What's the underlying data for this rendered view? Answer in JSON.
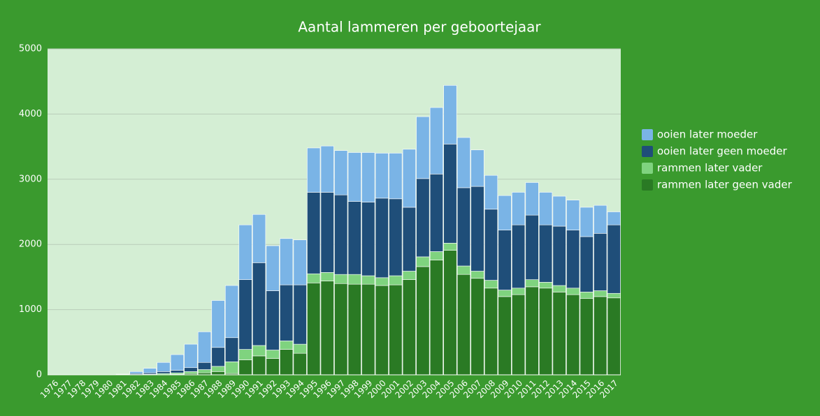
{
  "chart_data": {
    "type": "stacked-bar",
    "title": "Aantal lammeren per geboortejaar",
    "categories": [
      "1976",
      "1977",
      "1978",
      "1979",
      "1980",
      "1981",
      "1982",
      "1983",
      "1984",
      "1985",
      "1986",
      "1987",
      "1988",
      "1989",
      "1990",
      "1991",
      "1992",
      "1993",
      "1994",
      "1995",
      "1996",
      "1997",
      "1998",
      "1999",
      "2000",
      "2001",
      "2002",
      "2003",
      "2004",
      "2005",
      "2006",
      "2007",
      "2008",
      "2009",
      "2010",
      "2011",
      "2012",
      "2013",
      "2014",
      "2015",
      "2016",
      "2017"
    ],
    "series": [
      {
        "name": "ooien later moeder",
        "color": "#7ab4e6",
        "values": [
          0,
          0,
          0,
          0,
          0,
          5,
          30,
          70,
          140,
          240,
          360,
          470,
          720,
          800,
          840,
          740,
          690,
          710,
          690,
          680,
          710,
          680,
          750,
          760,
          690,
          700,
          890,
          950,
          1020,
          900,
          770,
          560,
          520,
          530,
          500,
          500,
          500,
          460,
          460,
          450,
          430,
          200
        ]
      },
      {
        "name": "ooien later geen moeder",
        "color": "#1f4e79",
        "values": [
          0,
          0,
          0,
          0,
          0,
          5,
          15,
          20,
          30,
          40,
          60,
          110,
          290,
          370,
          1070,
          1270,
          910,
          860,
          910,
          1250,
          1230,
          1220,
          1120,
          1130,
          1220,
          1180,
          980,
          1200,
          1190,
          1520,
          1200,
          1300,
          1090,
          920,
          970,
          990,
          880,
          910,
          890,
          850,
          880,
          1050
        ]
      },
      {
        "name": "rammen later vader",
        "color": "#7fd37f",
        "values": [
          0,
          0,
          0,
          0,
          0,
          0,
          5,
          10,
          20,
          20,
          30,
          50,
          80,
          180,
          160,
          160,
          130,
          130,
          140,
          140,
          130,
          140,
          150,
          130,
          120,
          140,
          130,
          150,
          130,
          110,
          130,
          110,
          120,
          100,
          100,
          110,
          90,
          100,
          100,
          100,
          90,
          70
        ]
      },
      {
        "name": "rammen later geen vader",
        "color": "#2a7a24",
        "values": [
          0,
          0,
          0,
          0,
          0,
          0,
          0,
          0,
          0,
          10,
          20,
          30,
          50,
          20,
          230,
          290,
          250,
          390,
          330,
          1410,
          1440,
          1400,
          1390,
          1390,
          1370,
          1380,
          1460,
          1660,
          1760,
          1910,
          1540,
          1480,
          1330,
          1200,
          1230,
          1350,
          1330,
          1270,
          1230,
          1170,
          1200,
          1180
        ]
      }
    ],
    "ylim": [
      0,
      5000
    ],
    "yticks": [
      0,
      1000,
      2000,
      3000,
      4000,
      5000
    ],
    "grid": true
  }
}
